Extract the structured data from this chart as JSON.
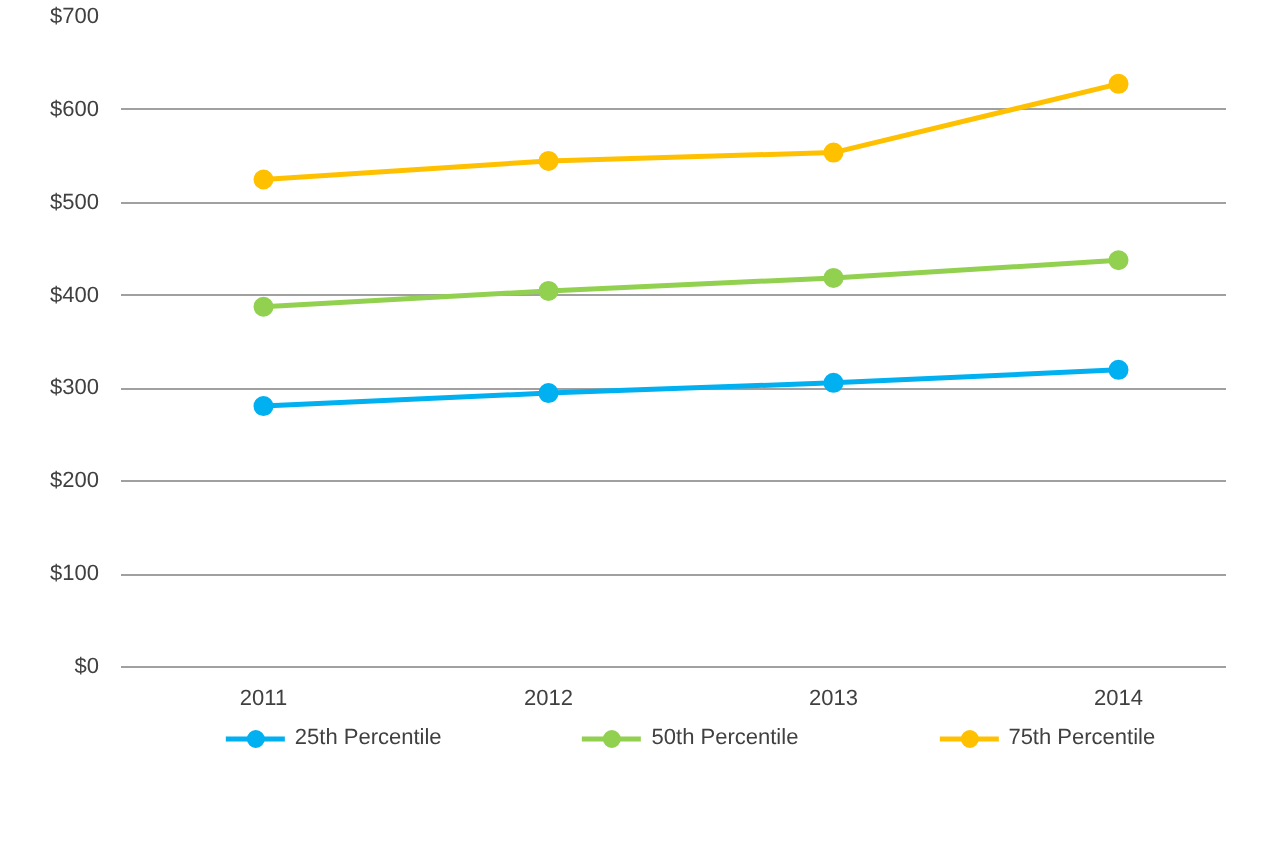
{
  "chart_data": {
    "type": "line",
    "categories": [
      "2011",
      "2012",
      "2013",
      "2014"
    ],
    "series": [
      {
        "name": "25th Percentile",
        "color": "#00b0f0",
        "values": [
          281,
          295,
          306,
          320
        ]
      },
      {
        "name": "50th Percentile",
        "color": "#92d050",
        "values": [
          388,
          405,
          419,
          438
        ]
      },
      {
        "name": "75th Percentile",
        "color": "#ffc000",
        "values": [
          525,
          545,
          554,
          628
        ]
      }
    ],
    "ylim": [
      0,
      700
    ],
    "yticks": [
      {
        "value": 0,
        "label": "$0"
      },
      {
        "value": 100,
        "label": "$100"
      },
      {
        "value": 200,
        "label": "$200"
      },
      {
        "value": 300,
        "label": "$300"
      },
      {
        "value": 400,
        "label": "$400"
      },
      {
        "value": 500,
        "label": "$500"
      },
      {
        "value": 600,
        "label": "$600"
      },
      {
        "value": 700,
        "label": "$700"
      }
    ],
    "grid": "y",
    "legend": "bottom",
    "marker": "circle",
    "line_style": "solid"
  }
}
